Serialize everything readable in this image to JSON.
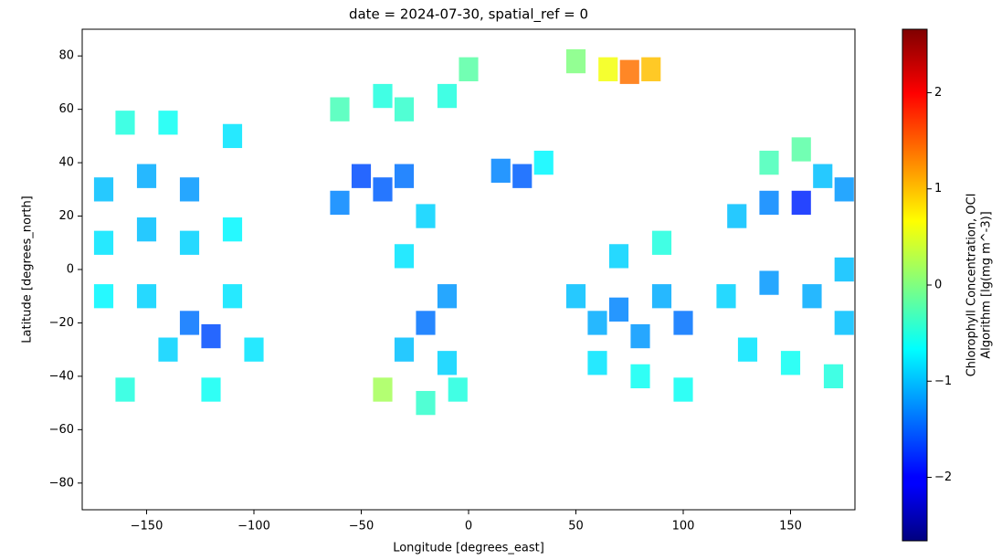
{
  "chart_data": {
    "type": "raster",
    "title": "date = 2024-07-30, spatial_ref = 0",
    "x_label": "Longitude [degrees_east]",
    "y_label": "Latitude [degrees_north]",
    "colorbar_label": [
      "Chlorophyll Concentration, OCI",
      "Algorithm [lg(mg m^-3)]"
    ],
    "colormap": "jet",
    "xlim": [
      -180,
      180
    ],
    "ylim": [
      -90,
      90
    ],
    "xticks": [
      {
        "value": -150,
        "label": "−150"
      },
      {
        "value": -100,
        "label": "−100"
      },
      {
        "value": -50,
        "label": "−50"
      },
      0,
      50,
      100,
      150
    ],
    "yticks": [
      {
        "value": -80,
        "label": "−80"
      },
      {
        "value": -60,
        "label": "−60"
      },
      {
        "value": -40,
        "label": "−40"
      },
      {
        "value": -20,
        "label": "−20"
      },
      0,
      20,
      40,
      60,
      80
    ],
    "clim": [
      -2.66,
      2.66
    ],
    "cticks": [
      {
        "value": -2,
        "label": "−2"
      },
      {
        "value": -1,
        "label": "−1"
      },
      0,
      1,
      2
    ],
    "x": [
      -170,
      -150,
      -130,
      -170,
      -150,
      -130,
      -110,
      -170,
      -150,
      -130,
      -120,
      -140,
      -110,
      -100,
      -160,
      -120,
      -160,
      -140,
      -110,
      -60,
      -40,
      -50,
      -40,
      -30,
      -60,
      -20,
      -30,
      -10,
      -20,
      -30,
      -10,
      -40,
      -20,
      -5,
      -30,
      -10,
      0,
      50,
      65,
      75,
      85,
      15,
      25,
      35,
      50,
      60,
      70,
      80,
      90,
      100,
      60,
      80,
      100,
      70,
      90,
      125,
      140,
      155,
      165,
      140,
      155,
      120,
      140,
      160,
      175,
      130,
      150,
      170,
      175,
      175
    ],
    "y": [
      30,
      35,
      30,
      10,
      15,
      10,
      15,
      -10,
      -10,
      -20,
      -25,
      -30,
      -10,
      -30,
      -45,
      -45,
      55,
      55,
      50,
      60,
      65,
      35,
      30,
      35,
      25,
      20,
      5,
      -10,
      -20,
      -30,
      -35,
      -45,
      -50,
      -45,
      60,
      65,
      75,
      78,
      75,
      74,
      75,
      37,
      35,
      40,
      -10,
      -20,
      -15,
      -25,
      -10,
      -20,
      -35,
      -40,
      -45,
      5,
      10,
      20,
      25,
      25,
      35,
      40,
      45,
      -10,
      -5,
      -10,
      0,
      -30,
      -35,
      -40,
      30,
      -20
    ],
    "values": [
      -1.0,
      -1.1,
      -1.2,
      -0.8,
      -1.0,
      -0.9,
      -0.7,
      -0.7,
      -0.9,
      -1.4,
      -1.6,
      -0.9,
      -0.8,
      -0.8,
      -0.5,
      -0.6,
      -0.5,
      -0.6,
      -0.8,
      -0.3,
      -0.5,
      -1.6,
      -1.5,
      -1.4,
      -1.3,
      -0.9,
      -0.8,
      -1.2,
      -1.4,
      -1.0,
      -0.9,
      0.2,
      -0.4,
      -0.5,
      -0.4,
      -0.5,
      -0.2,
      0.0,
      0.6,
      1.4,
      1.0,
      -1.3,
      -1.5,
      -0.7,
      -1.0,
      -1.1,
      -1.3,
      -1.2,
      -1.1,
      -1.4,
      -0.8,
      -0.6,
      -0.6,
      -0.9,
      -0.5,
      -1.0,
      -1.3,
      -1.8,
      -1.0,
      -0.3,
      -0.2,
      -0.9,
      -1.2,
      -1.1,
      -1.0,
      -0.8,
      -0.6,
      -0.5,
      -1.2,
      -1.0
    ]
  }
}
